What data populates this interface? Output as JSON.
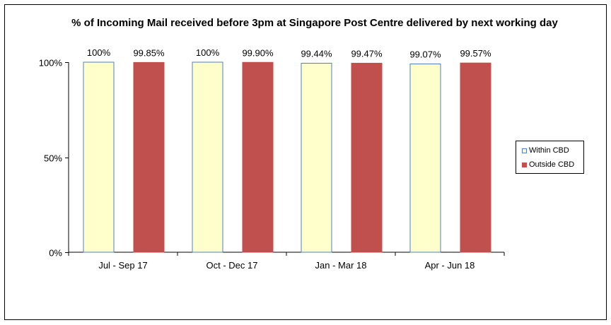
{
  "chart_data": {
    "type": "bar",
    "title": "% of Incoming Mail received before 3pm at Singapore Post Centre delivered by next working day",
    "xlabel": "",
    "ylabel": "",
    "categories": [
      "Jul - Sep 17",
      "Oct - Dec 17",
      "Jan - Mar 18",
      "Apr - Jun 18"
    ],
    "series": [
      {
        "name": "Within CBD",
        "values": [
          100,
          100,
          99.44,
          99.07
        ],
        "labels": [
          "100%",
          "100%",
          "99.44%",
          "99.07%"
        ],
        "color": "#FFFFCC",
        "border": "#4F81BD"
      },
      {
        "name": "Outside CBD",
        "values": [
          99.85,
          99.9,
          99.47,
          99.57
        ],
        "labels": [
          "99.85%",
          "99.90%",
          "99.47%",
          "99.57%"
        ],
        "color": "#C0504D",
        "border": "#C0504D"
      }
    ],
    "ylim": [
      0,
      100
    ],
    "yticks": [
      0,
      50,
      100
    ],
    "ytick_labels": [
      "0%",
      "50%",
      "100%"
    ],
    "grid": false,
    "legend_position": "right"
  }
}
